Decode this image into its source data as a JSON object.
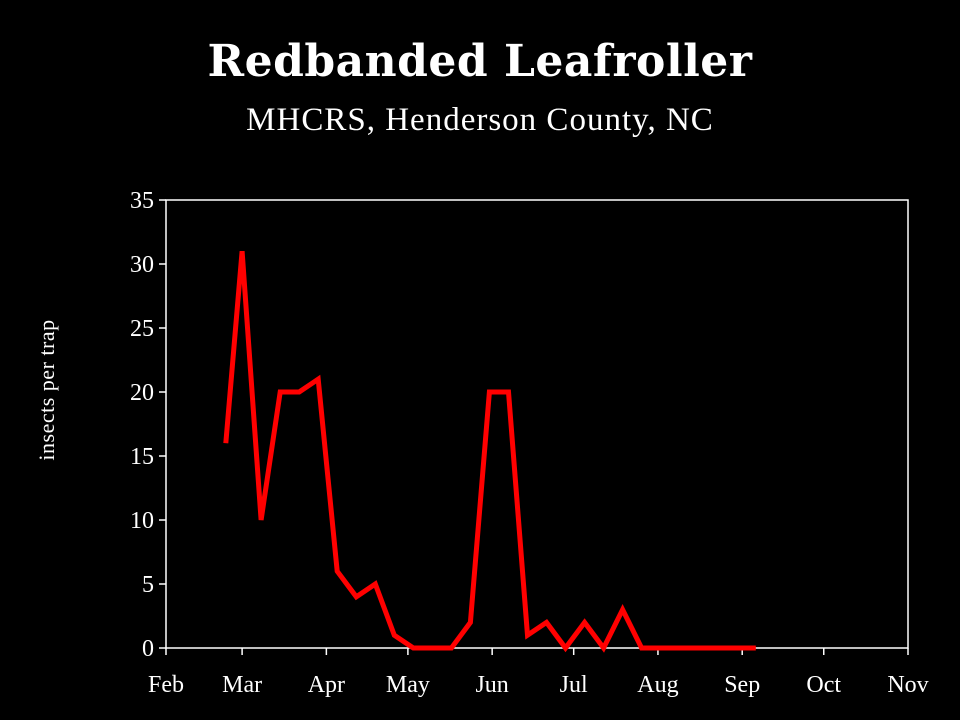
{
  "chart_data": {
    "type": "line",
    "title": "Redbanded Leafroller",
    "subtitle": "MHCRS, Henderson County, NC",
    "ylabel": "insects per trap",
    "xlabel": "",
    "ylim": [
      0,
      35
    ],
    "yticks": [
      0,
      5,
      10,
      15,
      20,
      25,
      30,
      35
    ],
    "xlim": [
      "Feb 1",
      "Nov 1"
    ],
    "xtick_labels": [
      {
        "label": "Feb",
        "date": "Feb 1"
      },
      {
        "label": "Mar",
        "date": "Mar 1"
      },
      {
        "label": "Apr",
        "date": "Apr 1"
      },
      {
        "label": "May",
        "date": "May 1"
      },
      {
        "label": "Jun",
        "date": "Jun 1"
      },
      {
        "label": "Jul",
        "date": "Jul 1"
      },
      {
        "label": "Aug",
        "date": "Aug 1"
      },
      {
        "label": "Sep",
        "date": "Sep 1"
      },
      {
        "label": "Oct",
        "date": "Oct 1"
      },
      {
        "label": "Nov",
        "date": "Nov 1"
      }
    ],
    "grid": false,
    "legend": "none",
    "series": [
      {
        "color": "#ff0000",
        "points": [
          {
            "date": "Feb 23",
            "y": 16
          },
          {
            "date": "Mar 1",
            "y": 31
          },
          {
            "date": "Mar 8",
            "y": 10
          },
          {
            "date": "Mar 15",
            "y": 20
          },
          {
            "date": "Mar 22",
            "y": 20
          },
          {
            "date": "Mar 29",
            "y": 21
          },
          {
            "date": "Apr 5",
            "y": 6
          },
          {
            "date": "Apr 12",
            "y": 4
          },
          {
            "date": "Apr 19",
            "y": 5
          },
          {
            "date": "Apr 26",
            "y": 1
          },
          {
            "date": "May 3",
            "y": 0
          },
          {
            "date": "May 10",
            "y": 0
          },
          {
            "date": "May 17",
            "y": 0
          },
          {
            "date": "May 24",
            "y": 2
          },
          {
            "date": "May 31",
            "y": 20
          },
          {
            "date": "Jun 7",
            "y": 20
          },
          {
            "date": "Jun 14",
            "y": 1
          },
          {
            "date": "Jun 21",
            "y": 2
          },
          {
            "date": "Jun 28",
            "y": 0
          },
          {
            "date": "Jul 5",
            "y": 2
          },
          {
            "date": "Jul 12",
            "y": 0
          },
          {
            "date": "Jul 19",
            "y": 3
          },
          {
            "date": "Jul 26",
            "y": 0
          },
          {
            "date": "Aug 2",
            "y": 0
          },
          {
            "date": "Aug 9",
            "y": 0
          },
          {
            "date": "Aug 16",
            "y": 0
          },
          {
            "date": "Aug 23",
            "y": 0
          },
          {
            "date": "Aug 30",
            "y": 0
          },
          {
            "date": "Sep 6",
            "y": 0
          }
        ]
      }
    ]
  }
}
